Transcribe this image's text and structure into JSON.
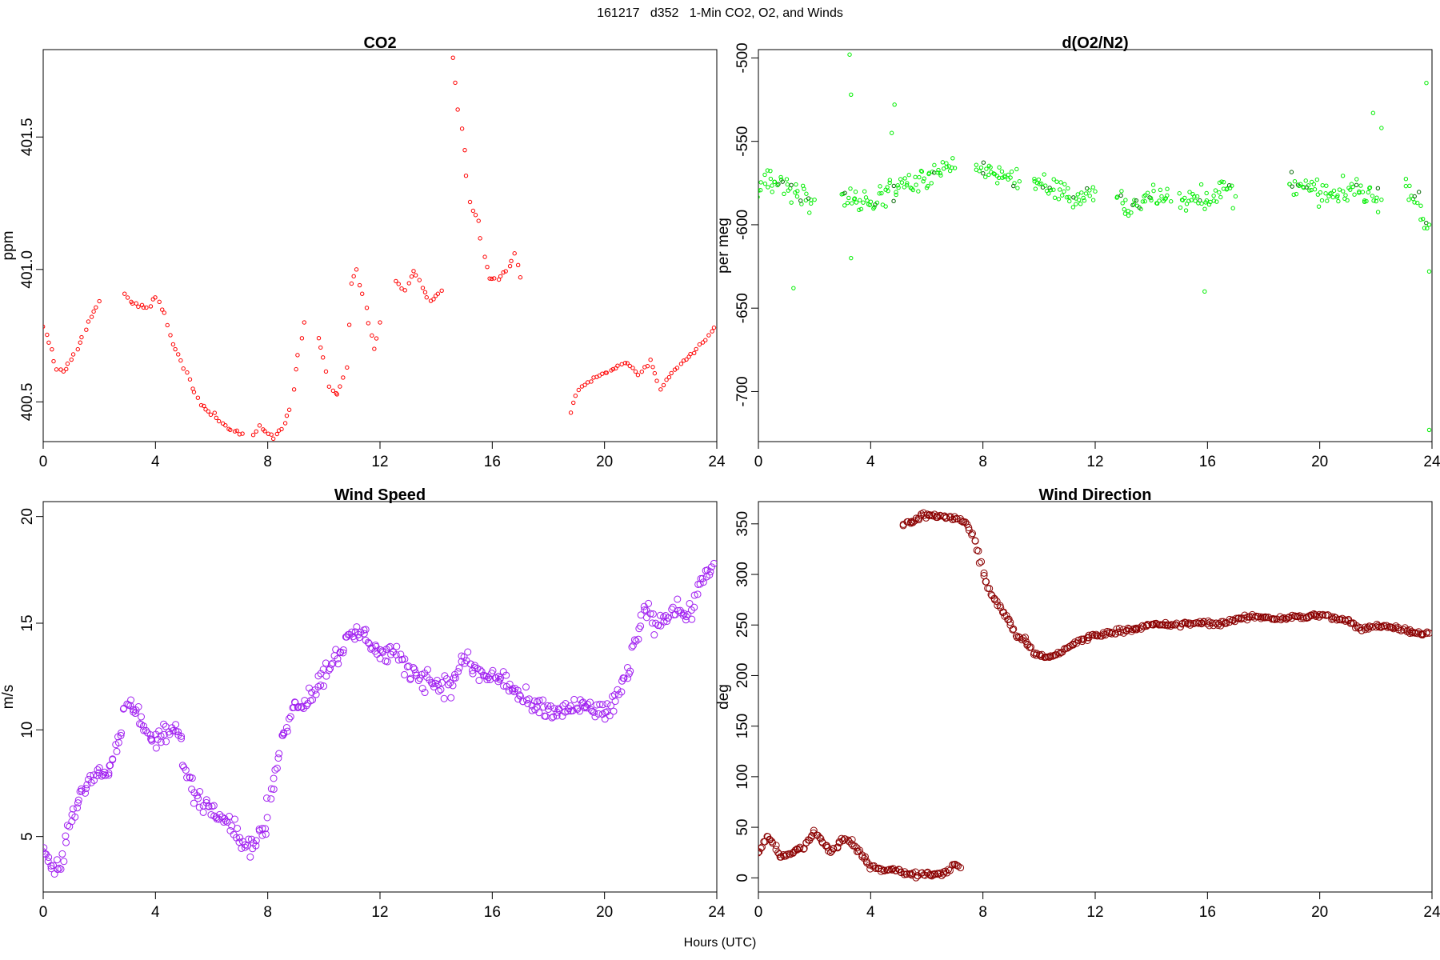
{
  "page_title": "161217   d352   1-Min CO2, O2, and Winds",
  "x_axis_label": "Hours (UTC)",
  "chart_data": [
    {
      "type": "scatter",
      "title": "CO2",
      "xlabel": "",
      "ylabel": "ppm",
      "xlim": [
        0,
        24
      ],
      "ylim": [
        400.35,
        401.83
      ],
      "xticks": [
        0,
        4,
        8,
        12,
        16,
        20,
        24
      ],
      "yticks": [
        400.5,
        401.0,
        401.5
      ],
      "ytick_labels": [
        "400.5",
        "401.0",
        "401.5"
      ],
      "color": "#ff0000",
      "marker": "open-circle-small",
      "grid": false,
      "segments": [
        {
          "x": [
            0.0,
            0.3,
            0.5,
            0.7,
            1.0,
            1.3,
            1.6,
            2.0
          ],
          "y": [
            400.78,
            400.7,
            400.62,
            400.61,
            400.66,
            400.72,
            400.8,
            400.88
          ]
        },
        {
          "x": [
            2.9,
            3.2,
            3.5,
            3.8,
            4.0,
            4.3,
            4.6,
            5.0,
            5.3,
            5.6,
            6.0,
            6.4,
            6.8,
            7.1
          ],
          "y": [
            400.9,
            400.87,
            400.86,
            400.86,
            400.9,
            400.83,
            400.72,
            400.63,
            400.56,
            400.49,
            400.46,
            400.42,
            400.39,
            400.38
          ]
        },
        {
          "x": [
            7.5,
            7.7,
            8.0,
            8.2,
            8.5,
            8.8,
            9.0,
            9.3
          ],
          "y": [
            400.37,
            400.41,
            400.38,
            400.37,
            400.4,
            400.47,
            400.62,
            400.8
          ]
        },
        {
          "x": [
            9.8,
            10.0,
            10.2,
            10.5,
            10.8,
            11.0,
            11.2,
            11.5,
            11.8,
            12.0
          ],
          "y": [
            400.74,
            400.67,
            400.55,
            400.53,
            400.63,
            400.95,
            401.0,
            400.85,
            400.7,
            400.8
          ]
        },
        {
          "x": [
            12.6,
            12.9,
            13.2,
            13.5,
            13.8,
            14.0,
            14.2
          ],
          "y": [
            400.96,
            400.92,
            401.0,
            400.93,
            400.88,
            400.9,
            400.92
          ]
        },
        {
          "x": [
            14.6,
            14.8,
            15.0,
            15.2,
            15.5,
            15.7,
            15.9,
            16.2,
            16.5,
            16.8,
            17.0
          ],
          "y": [
            401.8,
            401.6,
            401.45,
            401.25,
            401.18,
            401.05,
            400.97,
            400.96,
            401.0,
            401.05,
            400.97
          ]
        },
        {
          "x": [
            18.8,
            19.1,
            19.5,
            19.9,
            20.3,
            20.8,
            21.2,
            21.6,
            22.0,
            22.5,
            23.0,
            23.5,
            23.9
          ],
          "y": [
            400.46,
            400.55,
            400.58,
            400.6,
            400.62,
            400.65,
            400.6,
            400.66,
            400.55,
            400.62,
            400.67,
            400.72,
            400.78
          ]
        }
      ]
    },
    {
      "type": "scatter",
      "title": "d(O2/N2)",
      "xlabel": "",
      "ylabel": "per meg",
      "xlim": [
        0,
        24
      ],
      "ylim": [
        -730,
        -495
      ],
      "xticks": [
        0,
        4,
        8,
        12,
        16,
        20,
        24
      ],
      "yticks": [
        -700,
        -650,
        -600,
        -550,
        -500
      ],
      "ytick_labels": [
        "-700",
        "-650",
        "-600",
        "-550",
        "-500"
      ],
      "color": "#00ee00",
      "dark_color": "#006400",
      "marker": "open-circle-small",
      "grid": false,
      "segments": [
        {
          "x": [
            0.0,
            0.5,
            1.0,
            1.5,
            2.0
          ],
          "y": [
            -578,
            -572,
            -576,
            -582,
            -585
          ]
        },
        {
          "x": [
            3.0,
            3.5,
            4.0,
            4.5,
            5.0,
            5.5,
            6.0,
            6.5,
            7.0
          ],
          "y": [
            -583,
            -588,
            -586,
            -580,
            -578,
            -574,
            -571,
            -568,
            -566
          ]
        },
        {
          "x": [
            7.8,
            8.2,
            8.6,
            9.0,
            9.3
          ],
          "y": [
            -566,
            -567,
            -569,
            -572,
            -574
          ]
        },
        {
          "x": [
            9.8,
            10.3,
            10.8,
            11.3,
            11.7,
            12.0
          ],
          "y": [
            -574,
            -576,
            -580,
            -585,
            -582,
            -580
          ]
        },
        {
          "x": [
            12.8,
            13.3,
            13.8,
            14.3,
            14.7
          ],
          "y": [
            -585,
            -590,
            -586,
            -583,
            -586
          ]
        },
        {
          "x": [
            15.0,
            15.5,
            16.0,
            16.5,
            17.0
          ],
          "y": [
            -585,
            -582,
            -584,
            -580,
            -583
          ]
        },
        {
          "x": [
            18.9,
            19.4,
            19.9,
            20.4,
            20.9,
            21.4,
            21.8,
            22.2
          ],
          "y": [
            -574,
            -578,
            -580,
            -584,
            -580,
            -578,
            -582,
            -585
          ]
        },
        {
          "x": [
            23.1,
            23.4,
            23.7,
            23.9
          ],
          "y": [
            -575,
            -585,
            -597,
            -600
          ]
        }
      ],
      "outliers": [
        {
          "x": 3.25,
          "y": -498
        },
        {
          "x": 3.3,
          "y": -522
        },
        {
          "x": 4.85,
          "y": -528
        },
        {
          "x": 4.75,
          "y": -545
        },
        {
          "x": 1.25,
          "y": -638
        },
        {
          "x": 3.3,
          "y": -620
        },
        {
          "x": 15.9,
          "y": -640
        },
        {
          "x": 21.9,
          "y": -533
        },
        {
          "x": 22.2,
          "y": -542
        },
        {
          "x": 23.8,
          "y": -515
        },
        {
          "x": 23.9,
          "y": -723
        },
        {
          "x": 23.9,
          "y": -628
        }
      ]
    },
    {
      "type": "scatter",
      "title": "Wind Speed",
      "xlabel": "",
      "ylabel": "m/s",
      "xlim": [
        0,
        24
      ],
      "ylim": [
        2.4,
        20.7
      ],
      "xticks": [
        0,
        4,
        8,
        12,
        16,
        20,
        24
      ],
      "yticks": [
        5,
        10,
        15,
        20
      ],
      "ytick_labels": [
        "5",
        "10",
        "15",
        "20"
      ],
      "color": "#a020f0",
      "marker": "open-circle-large",
      "grid": false,
      "segments": [
        {
          "x": [
            0.0,
            0.2,
            0.4,
            0.6,
            0.8,
            1.0,
            1.3,
            1.6,
            2.0,
            2.4,
            2.7,
            3.0,
            3.3,
            3.6,
            4.0,
            4.4,
            4.8,
            5.1,
            5.4,
            5.8,
            6.2,
            6.6,
            7.0,
            7.3,
            7.6,
            7.9,
            8.2,
            8.5,
            8.8,
            9.1,
            9.5,
            10.0,
            10.4,
            10.8,
            11.2,
            11.6,
            12.0,
            12.5,
            13.0,
            13.5,
            14.0,
            14.5,
            15.0,
            15.5,
            16.0,
            16.5,
            17.0,
            17.5,
            18.0,
            18.5,
            19.0,
            19.5,
            20.0,
            20.3,
            20.7,
            21.0,
            21.4,
            21.8,
            22.2,
            22.6,
            23.0,
            23.3,
            23.6,
            23.9
          ],
          "y": [
            4.5,
            3.8,
            3.5,
            3.7,
            4.8,
            5.8,
            6.6,
            7.5,
            8.0,
            8.2,
            9.5,
            11.5,
            10.8,
            10.0,
            9.4,
            9.8,
            10.0,
            8.0,
            7.0,
            6.5,
            6.3,
            5.8,
            5.0,
            4.4,
            4.8,
            5.5,
            7.5,
            9.5,
            10.8,
            11.2,
            11.6,
            12.5,
            13.5,
            14.0,
            14.6,
            14.3,
            13.6,
            13.5,
            12.8,
            12.5,
            12.2,
            12.0,
            13.4,
            12.6,
            12.5,
            12.3,
            11.5,
            11.0,
            10.8,
            10.9,
            11.1,
            11.0,
            10.8,
            11.2,
            12.0,
            13.5,
            15.8,
            15.0,
            15.4,
            15.8,
            15.3,
            16.5,
            17.5,
            17.8
          ]
        }
      ]
    },
    {
      "type": "scatter",
      "title": "Wind Direction",
      "xlabel": "",
      "ylabel": "deg",
      "xlim": [
        0,
        24
      ],
      "ylim": [
        -14,
        372
      ],
      "xticks": [
        0,
        4,
        8,
        12,
        16,
        20,
        24
      ],
      "yticks": [
        0,
        50,
        100,
        150,
        200,
        250,
        300,
        350
      ],
      "ytick_labels": [
        "0",
        "50",
        "100",
        "150",
        "200",
        "250",
        "300",
        "350"
      ],
      "color": "#8b0000",
      "marker": "open-circle-large",
      "grid": false,
      "segments": [
        {
          "x": [
            0.0,
            0.3,
            0.5,
            0.8,
            1.2,
            1.6,
            2.0,
            2.3,
            2.6,
            3.0,
            3.3,
            3.6,
            4.0,
            4.4,
            4.8,
            5.2,
            5.6,
            6.0,
            6.4,
            6.8,
            7.0,
            7.2
          ],
          "y": [
            25,
            40,
            35,
            20,
            25,
            30,
            45,
            35,
            25,
            38,
            35,
            25,
            12,
            8,
            8,
            5,
            3,
            5,
            3,
            8,
            15,
            10
          ]
        },
        {
          "x": [
            5.2,
            5.5,
            5.8,
            6.1,
            6.4,
            6.7,
            7.1,
            7.4,
            7.7,
            8.0,
            8.3,
            8.6,
            8.9,
            9.2,
            9.5,
            9.8,
            10.2,
            10.6,
            11.0,
            11.5,
            12.0,
            12.5,
            13.0,
            13.5,
            14.0,
            14.5,
            15.0,
            15.5,
            16.0,
            16.5,
            17.0,
            17.5,
            18.0,
            18.5,
            19.0,
            19.5,
            20.0,
            20.5,
            21.0,
            21.5,
            22.0,
            22.5,
            23.0,
            23.5,
            23.9
          ],
          "y": [
            350,
            352,
            358,
            358,
            358,
            356,
            356,
            350,
            335,
            300,
            280,
            268,
            255,
            240,
            235,
            222,
            218,
            220,
            228,
            235,
            240,
            242,
            245,
            247,
            250,
            250,
            250,
            252,
            252,
            251,
            255,
            258,
            258,
            256,
            258,
            258,
            260,
            257,
            254,
            245,
            250,
            248,
            246,
            242,
            242
          ]
        }
      ]
    }
  ]
}
